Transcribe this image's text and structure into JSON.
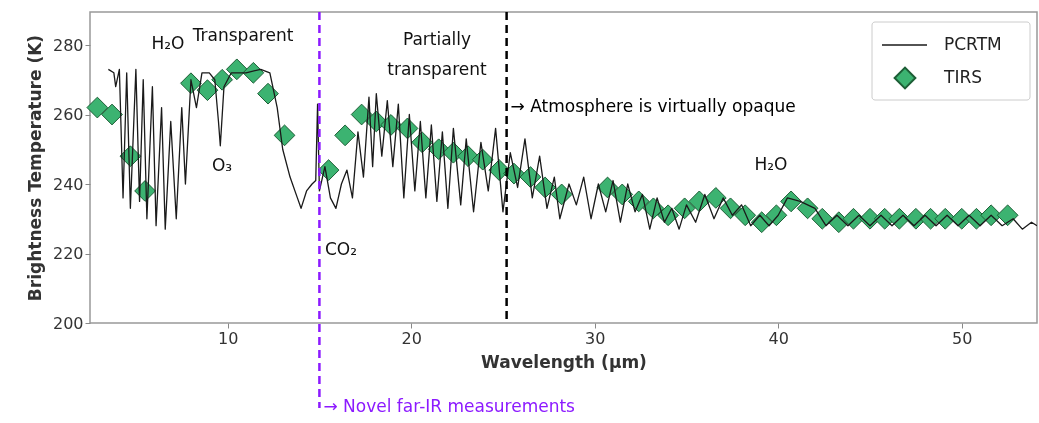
{
  "chart_data": {
    "type": "line",
    "xlabel": "Wavelength (μm)",
    "ylabel": "Brightness Temperature (K)",
    "xlim": [
      2.5,
      54.1
    ],
    "xticks": [
      10,
      20,
      30,
      40,
      50
    ],
    "ylim": [
      200,
      289.5
    ],
    "yticks": [
      200,
      220,
      240,
      260,
      280
    ],
    "grid": false,
    "legend": "top right",
    "series": [
      {
        "name": "PCRTM",
        "color": "#1a1a1a",
        "line_style": "solid",
        "x": [
          3.5,
          3.8,
          3.9,
          4.1,
          4.3,
          4.5,
          4.7,
          5.0,
          5.2,
          5.4,
          5.6,
          5.9,
          6.1,
          6.4,
          6.6,
          6.9,
          7.2,
          7.5,
          7.7,
          8.0,
          8.3,
          8.6,
          9.0,
          9.3,
          9.5,
          9.6,
          9.8,
          10.2,
          11,
          11.8,
          12.3,
          12.7,
          13.0,
          13.4,
          13.8,
          14.0,
          14.3,
          14.6,
          14.8,
          14.9,
          15.0,
          15.3,
          15.6,
          15.9,
          16.2,
          16.5,
          16.8,
          17.1,
          17.4,
          17.7,
          17.9,
          18.1,
          18.4,
          18.7,
          19.0,
          19.3,
          19.6,
          19.9,
          20.2,
          20.5,
          20.8,
          21.1,
          21.4,
          21.7,
          22.0,
          22.3,
          22.7,
          23.0,
          23.4,
          23.8,
          24.2,
          24.6,
          25.0,
          25.4,
          25.8,
          26.2,
          26.6,
          27.0,
          27.4,
          27.8,
          28.1,
          28.6,
          29.0,
          29.4,
          29.8,
          30.2,
          30.6,
          31.0,
          31.4,
          31.8,
          32.2,
          32.6,
          33.0,
          33.4,
          33.8,
          34.2,
          34.6,
          35.0,
          35.5,
          36.0,
          36.5,
          37.0,
          37.5,
          38.0,
          38.5,
          39.0,
          39.5,
          40.0,
          40.5,
          41.2,
          42.0,
          42.6,
          43.2,
          43.8,
          44.4,
          45.0,
          45.6,
          46.2,
          46.8,
          47.4,
          48.0,
          48.6,
          49.2,
          49.8,
          50.4,
          51.0,
          51.6,
          52.2,
          52.8,
          53.3,
          53.8,
          54.1
        ],
        "values": [
          273,
          272,
          268,
          273,
          236,
          272,
          233,
          273,
          235,
          270,
          230,
          268,
          228,
          262,
          227,
          258,
          230,
          262,
          240,
          270,
          262,
          272,
          272,
          270,
          258,
          251,
          268,
          272,
          272,
          273,
          272,
          262,
          250,
          242,
          236,
          233,
          238,
          240,
          241,
          263,
          238,
          245,
          236,
          233,
          240,
          244,
          236,
          255,
          242,
          265,
          245,
          266,
          248,
          264,
          245,
          263,
          236,
          260,
          238,
          258,
          236,
          257,
          235,
          255,
          233,
          256,
          234,
          253,
          232,
          252,
          238,
          256,
          232,
          249,
          239,
          253,
          236,
          248,
          233,
          242,
          230,
          240,
          234,
          242,
          230,
          240,
          232,
          241,
          229,
          240,
          232,
          237,
          227,
          236,
          229,
          233,
          227,
          234,
          229,
          237,
          230,
          236,
          231,
          234,
          228,
          231,
          228,
          231,
          236,
          235,
          233,
          228,
          231,
          228,
          231,
          228,
          231,
          228,
          231,
          228,
          231,
          228,
          231,
          228,
          231,
          228,
          231,
          228,
          230,
          227,
          229,
          228
        ]
      },
      {
        "name": "TIRS",
        "type": "scatter",
        "color": "#3cb371",
        "marker": "diamond",
        "x": [
          2.9,
          3.7,
          4.7,
          5.5,
          8.0,
          8.9,
          9.7,
          10.5,
          11.4,
          12.2,
          13.1,
          15.5,
          16.4,
          17.3,
          18.1,
          18.9,
          19.8,
          20.6,
          21.5,
          22.3,
          23.1,
          23.9,
          24.8,
          25.6,
          26.5,
          27.3,
          28.2,
          30.7,
          31.5,
          32.4,
          33.2,
          34.0,
          34.9,
          35.7,
          36.6,
          37.4,
          38.2,
          39.1,
          39.9,
          40.7,
          41.6,
          42.4,
          43.3,
          44.1,
          45.0,
          45.8,
          46.6,
          47.5,
          48.3,
          49.1,
          50.0,
          50.8,
          51.6,
          52.5
        ],
        "values": [
          262,
          260,
          248,
          238,
          269,
          267,
          270,
          273,
          272,
          266,
          254,
          244,
          254,
          260,
          258,
          257,
          256,
          252,
          250,
          249,
          248,
          247,
          244,
          243,
          242,
          239,
          237,
          239,
          237,
          235,
          233,
          231,
          233,
          235,
          236,
          233,
          231,
          229,
          231,
          235,
          233,
          230,
          229,
          230,
          230,
          230,
          230,
          230,
          230,
          230,
          230,
          230,
          231,
          231
        ]
      }
    ],
    "ref_lines": [
      {
        "axis": "x",
        "value": 15,
        "label": "→ Novel far-IR measurements",
        "color": "#8c1aff",
        "line_style": "dashed"
      },
      {
        "axis": "x",
        "value": 25.2,
        "label": "→ Atmosphere is virtually opaque",
        "color": "#000000",
        "line_style": "dashed"
      }
    ],
    "annotations": [
      "Transparent",
      "Partially",
      "transparent",
      "H₂O",
      "O₃",
      "CO₂",
      "H₂O"
    ]
  }
}
